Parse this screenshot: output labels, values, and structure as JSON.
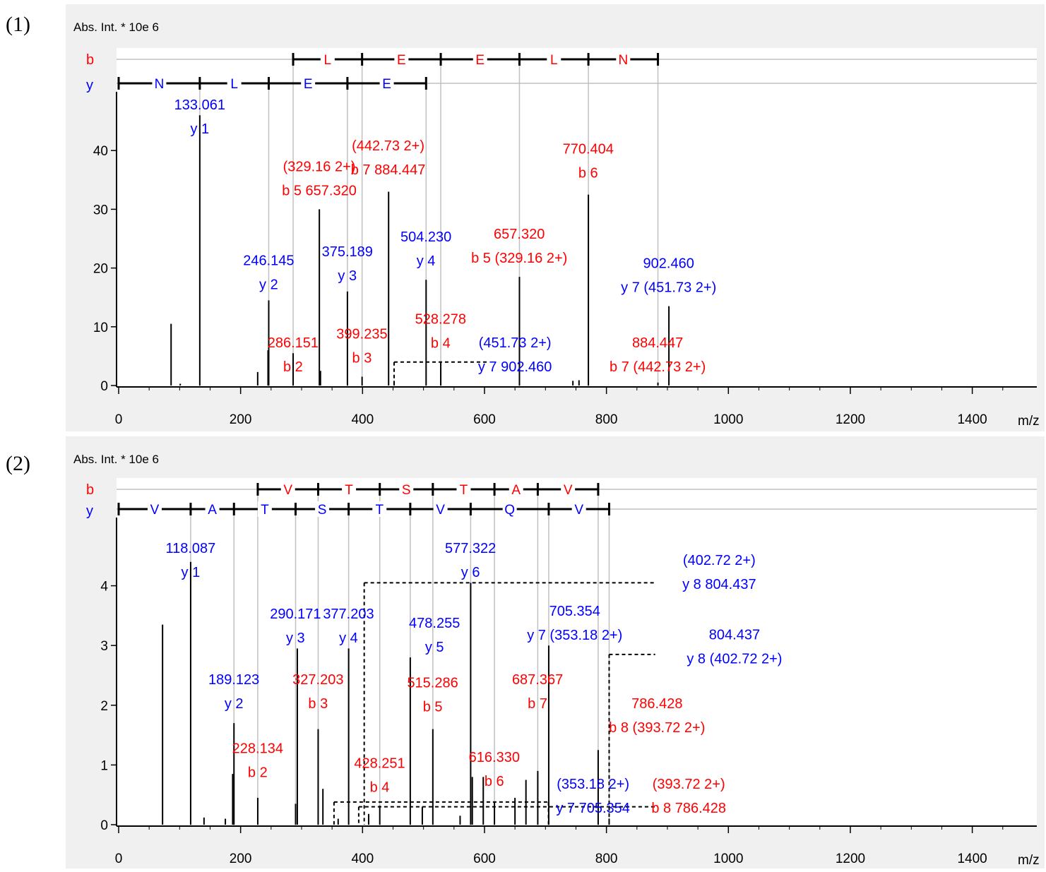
{
  "panels": [
    {
      "label": "(1)"
    },
    {
      "label": "(2)"
    }
  ],
  "colors": {
    "b_ion": "#ff0000",
    "y_ion": "#0000ff",
    "frame_bg": "#f0f0f0",
    "peak": "#000000",
    "guide": "#c0c0c0"
  },
  "chart_data": [
    {
      "type": "bar",
      "ylabel": "Abs. Int. * 10e 6",
      "xlabel": "m/z",
      "xlim": [
        0,
        1500
      ],
      "ylim": [
        0,
        50
      ],
      "x_ticks": [
        "0",
        "200",
        "400",
        "600",
        "800",
        "1000",
        "1200",
        "1400"
      ],
      "y_ticks": [
        "0",
        "10",
        "20",
        "30",
        "40"
      ],
      "b_series": {
        "label": "b",
        "residues": [
          "L",
          "E",
          "E",
          "L",
          "N"
        ],
        "ladder_mz": [
          286.151,
          399.235,
          528.278,
          657.32,
          770.404,
          884.447
        ]
      },
      "y_series": {
        "label": "y",
        "residues": [
          "N",
          "L",
          "E",
          "E"
        ],
        "ladder_mz": [
          0,
          133.061,
          246.145,
          375.189,
          504.23
        ]
      },
      "peaks": [
        {
          "mz": 86,
          "i": 10.5
        },
        {
          "mz": 101,
          "i": 0.3
        },
        {
          "mz": 133.061,
          "i": 46
        },
        {
          "mz": 228,
          "i": 2.3
        },
        {
          "mz": 246.145,
          "i": 14.5
        },
        {
          "mz": 245,
          "i": 6
        },
        {
          "mz": 286.151,
          "i": 5.5
        },
        {
          "mz": 329.16,
          "i": 30
        },
        {
          "mz": 331,
          "i": 2.5
        },
        {
          "mz": 375.189,
          "i": 16
        },
        {
          "mz": 399.235,
          "i": 1.5
        },
        {
          "mz": 442.73,
          "i": 33
        },
        {
          "mz": 451.73,
          "i": 0.8
        },
        {
          "mz": 504.23,
          "i": 18
        },
        {
          "mz": 528.278,
          "i": 4
        },
        {
          "mz": 657.32,
          "i": 18.5
        },
        {
          "mz": 745,
          "i": 0.8
        },
        {
          "mz": 755,
          "i": 0.9
        },
        {
          "mz": 770.404,
          "i": 32.5
        },
        {
          "mz": 884.447,
          "i": 0.5
        },
        {
          "mz": 902.46,
          "i": 13.5
        }
      ],
      "annotations": [
        {
          "lines": [
            "133.061",
            "y 1"
          ],
          "ion": "y",
          "mz": 133,
          "y": 47
        },
        {
          "lines": [
            "(329.16 2+)",
            "b 5 657.320"
          ],
          "ion": "b",
          "mz": 329,
          "y": 36.5
        },
        {
          "lines": [
            "(442.73 2+)",
            "b 7 884.447"
          ],
          "ion": "b",
          "mz": 442,
          "y": 40
        },
        {
          "lines": [
            "770.404",
            "b 6"
          ],
          "ion": "b",
          "mz": 770,
          "y": 39.5
        },
        {
          "lines": [
            "246.145",
            "y 2"
          ],
          "ion": "y",
          "mz": 246,
          "y": 20.5
        },
        {
          "lines": [
            "375.189",
            "y 3"
          ],
          "ion": "y",
          "mz": 375,
          "y": 22
        },
        {
          "lines": [
            "504.230",
            "y 4"
          ],
          "ion": "y",
          "mz": 504,
          "y": 24.5
        },
        {
          "lines": [
            "657.320",
            "b 5 (329.16 2+)"
          ],
          "ion": "b",
          "mz": 657,
          "y": 25
        },
        {
          "lines": [
            "902.460",
            "y 7 (451.73 2+)"
          ],
          "ion": "y",
          "mz": 902,
          "y": 20
        },
        {
          "lines": [
            "286.151",
            "b 2"
          ],
          "ion": "b",
          "mz": 286,
          "y": 6.5
        },
        {
          "lines": [
            "399.235",
            "b 3"
          ],
          "ion": "b",
          "mz": 399,
          "y": 8
        },
        {
          "lines": [
            "528.278",
            "b 4"
          ],
          "ion": "b",
          "mz": 528,
          "y": 10.5
        },
        {
          "lines": [
            "(451.73 2+)",
            "y 7 902.460"
          ],
          "ion": "y",
          "mz": 650,
          "y": 6.5
        },
        {
          "lines": [
            "884.447",
            "b 7 (442.73 2+)"
          ],
          "ion": "b",
          "mz": 884,
          "y": 6.5
        }
      ],
      "pair_links": [
        {
          "from_mz": 451.73,
          "to_mz": 604,
          "level": 4,
          "drop_left": true,
          "drop_right": false
        }
      ]
    },
    {
      "type": "bar",
      "ylabel": "Abs. Int. * 10e 6",
      "xlabel": "m/z",
      "xlim": [
        0,
        1500
      ],
      "ylim": [
        0,
        5
      ],
      "x_ticks": [
        "0",
        "200",
        "400",
        "600",
        "800",
        "1000",
        "1200",
        "1400"
      ],
      "y_ticks": [
        "0",
        "1",
        "2",
        "3",
        "4"
      ],
      "b_series": {
        "label": "b",
        "residues": [
          "V",
          "T",
          "S",
          "T",
          "A",
          "V"
        ],
        "ladder_mz": [
          228.134,
          327.203,
          428.251,
          515.286,
          616.33,
          687.367,
          786.428
        ]
      },
      "y_series": {
        "label": "y",
        "residues": [
          "V",
          "A",
          "T",
          "S",
          "T",
          "V",
          "Q",
          "V"
        ],
        "ladder_mz": [
          0,
          118.087,
          189.123,
          290.171,
          377.203,
          478.255,
          577.322,
          705.354,
          804.437
        ]
      },
      "peaks": [
        {
          "mz": 72,
          "i": 3.35
        },
        {
          "mz": 118.087,
          "i": 4.4
        },
        {
          "mz": 140,
          "i": 0.12
        },
        {
          "mz": 175,
          "i": 0.1
        },
        {
          "mz": 189.123,
          "i": 1.7
        },
        {
          "mz": 187,
          "i": 0.85
        },
        {
          "mz": 228.134,
          "i": 0.45
        },
        {
          "mz": 290.171,
          "i": 0.35
        },
        {
          "mz": 293,
          "i": 2.95
        },
        {
          "mz": 327.203,
          "i": 1.6
        },
        {
          "mz": 335,
          "i": 0.6
        },
        {
          "mz": 360,
          "i": 0.1
        },
        {
          "mz": 377.203,
          "i": 2.95
        },
        {
          "mz": 410,
          "i": 0.18
        },
        {
          "mz": 428.251,
          "i": 0.32
        },
        {
          "mz": 478.255,
          "i": 2.8
        },
        {
          "mz": 498,
          "i": 0.3
        },
        {
          "mz": 515.286,
          "i": 1.6
        },
        {
          "mz": 560,
          "i": 0.15
        },
        {
          "mz": 577.322,
          "i": 4.05
        },
        {
          "mz": 580,
          "i": 0.8
        },
        {
          "mz": 598,
          "i": 0.8
        },
        {
          "mz": 616.33,
          "i": 0.38
        },
        {
          "mz": 650,
          "i": 0.45
        },
        {
          "mz": 668,
          "i": 0.75
        },
        {
          "mz": 687.367,
          "i": 0.9
        },
        {
          "mz": 705.354,
          "i": 3.0
        },
        {
          "mz": 786.428,
          "i": 1.25
        },
        {
          "mz": 804.437,
          "i": 0.1
        }
      ],
      "annotations": [
        {
          "lines": [
            "118.087",
            "y 1"
          ],
          "ion": "y",
          "mz": 118,
          "y": 4.55
        },
        {
          "lines": [
            "577.322",
            "y 6"
          ],
          "ion": "y",
          "mz": 577,
          "y": 4.55
        },
        {
          "lines": [
            "(402.72 2+)",
            "y 8 804.437"
          ],
          "ion": "y",
          "mz": 985,
          "y": 4.35
        },
        {
          "lines": [
            "290.171",
            "y 3"
          ],
          "ion": "y",
          "mz": 290,
          "y": 3.45
        },
        {
          "lines": [
            "377.203",
            "y 4"
          ],
          "ion": "y",
          "mz": 377,
          "y": 3.45
        },
        {
          "lines": [
            "478.255",
            "y 5"
          ],
          "ion": "y",
          "mz": 518,
          "y": 3.3
        },
        {
          "lines": [
            "705.354",
            "y 7 (353.18 2+)"
          ],
          "ion": "y",
          "mz": 748,
          "y": 3.5
        },
        {
          "lines": [
            "804.437",
            "y 8 (402.72 2+)"
          ],
          "ion": "y",
          "mz": 1010,
          "y": 3.1
        },
        {
          "lines": [
            "189.123",
            "y 2"
          ],
          "ion": "y",
          "mz": 189,
          "y": 2.35
        },
        {
          "lines": [
            "327.203",
            "b 3"
          ],
          "ion": "b",
          "mz": 327,
          "y": 2.35
        },
        {
          "lines": [
            "515.286",
            "b 5"
          ],
          "ion": "b",
          "mz": 515,
          "y": 2.3
        },
        {
          "lines": [
            "687.367",
            "b 7"
          ],
          "ion": "b",
          "mz": 687,
          "y": 2.35
        },
        {
          "lines": [
            "786.428",
            "b 8 (393.72 2+)"
          ],
          "ion": "b",
          "mz": 883,
          "y": 1.95
        },
        {
          "lines": [
            "228.134",
            "b 2"
          ],
          "ion": "b",
          "mz": 228,
          "y": 1.2
        },
        {
          "lines": [
            "428.251",
            "b 4"
          ],
          "ion": "b",
          "mz": 428,
          "y": 0.95
        },
        {
          "lines": [
            "616.330",
            "b 6"
          ],
          "ion": "b",
          "mz": 616,
          "y": 1.05
        },
        {
          "lines": [
            "(353.18 2+)",
            "y 7 705.354"
          ],
          "ion": "y",
          "mz": 778,
          "y": 0.6
        },
        {
          "lines": [
            "(393.72 2+)",
            "b 8 786.428"
          ],
          "ion": "b",
          "mz": 935,
          "y": 0.6
        }
      ],
      "pair_links": [
        {
          "from_mz": 402.72,
          "to_mz": 880,
          "level": 4.05,
          "drop_left": true,
          "drop_right": false
        },
        {
          "from_mz": 804.437,
          "to_mz": 880,
          "level": 2.85,
          "drop_left": true,
          "drop_right": false
        },
        {
          "from_mz": 353.18,
          "to_mz": 705,
          "level": 0.38,
          "drop_left": true,
          "drop_right": true
        },
        {
          "from_mz": 393.72,
          "to_mz": 880,
          "level": 0.3,
          "drop_left": true,
          "drop_right": false
        }
      ]
    }
  ]
}
